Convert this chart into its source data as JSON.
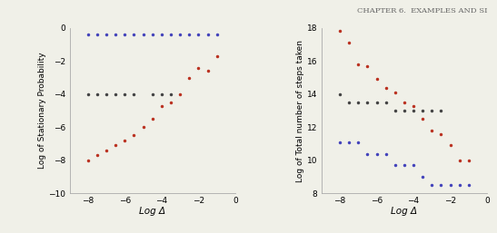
{
  "left_plot": {
    "blue_x": [
      -8,
      -7.5,
      -7,
      -6.5,
      -6,
      -5.5,
      -5,
      -4.5,
      -4,
      -3.5,
      -3,
      -2.5,
      -2,
      -1.5,
      -1
    ],
    "blue_y": [
      -0.4,
      -0.4,
      -0.4,
      -0.4,
      -0.4,
      -0.4,
      -0.4,
      -0.4,
      -0.4,
      -0.4,
      -0.4,
      -0.4,
      -0.4,
      -0.4,
      -0.4
    ],
    "black_x": [
      -8,
      -7.5,
      -7,
      -6.5,
      -6,
      -5.5,
      -4.5,
      -4,
      -3.5
    ],
    "black_y": [
      -4.0,
      -4.0,
      -4.0,
      -4.0,
      -4.0,
      -4.0,
      -4.0,
      -4.0,
      -4.0
    ],
    "red_x": [
      -8,
      -7.5,
      -7,
      -6.5,
      -6,
      -5.5,
      -5,
      -4.5,
      -4,
      -3.5,
      -3,
      -2.5,
      -2,
      -1.5,
      -1
    ],
    "red_y": [
      -8.0,
      -7.7,
      -7.4,
      -7.1,
      -6.8,
      -6.5,
      -6.0,
      -5.5,
      -4.7,
      -4.5,
      -4.0,
      -3.0,
      -2.4,
      -2.6,
      -1.7
    ],
    "xlabel": "Log Δ",
    "ylabel": "Log of Stationary Probability",
    "xlim": [
      -9,
      0
    ],
    "ylim": [
      -10,
      0
    ],
    "xticks": [
      -8,
      -6,
      -4,
      -2,
      0
    ],
    "yticks": [
      0,
      -2,
      -4,
      -6,
      -8,
      -10
    ]
  },
  "right_plot": {
    "blue_x": [
      -8,
      -7.5,
      -7,
      -6.5,
      -6,
      -5.5,
      -5,
      -4.5,
      -4,
      -3.5,
      -3,
      -2.5,
      -2,
      -1.5,
      -1
    ],
    "blue_y": [
      11.1,
      11.1,
      11.1,
      10.4,
      10.4,
      10.4,
      9.7,
      9.7,
      9.7,
      9.0,
      8.5,
      8.5,
      8.5,
      8.5,
      8.5
    ],
    "black_x": [
      -8,
      -7.5,
      -7,
      -6.5,
      -6,
      -5.5,
      -5,
      -4.5,
      -4,
      -3.5,
      -3,
      -2.5
    ],
    "black_y": [
      14.0,
      13.5,
      13.5,
      13.5,
      13.5,
      13.5,
      13.0,
      13.0,
      13.0,
      13.0,
      13.0,
      13.0
    ],
    "red_x": [
      -8,
      -7.5,
      -7,
      -6.5,
      -6,
      -5.5,
      -5,
      -4.5,
      -4,
      -3.5,
      -3,
      -2.5,
      -2,
      -1.5,
      -1
    ],
    "red_y": [
      17.8,
      17.1,
      15.8,
      15.7,
      14.9,
      14.4,
      14.1,
      13.5,
      13.3,
      12.5,
      11.8,
      11.6,
      10.9,
      10.0,
      10.0
    ],
    "xlabel": "Log Δ",
    "ylabel": "Log of Total number of steps taken",
    "xlim": [
      -9,
      0
    ],
    "ylim": [
      8,
      18
    ],
    "xticks": [
      -8,
      -6,
      -4,
      -2,
      0
    ],
    "yticks": [
      8,
      10,
      12,
      14,
      16,
      18
    ]
  },
  "blue_color": "#4444bb",
  "red_color": "#bb3322",
  "black_color": "#444444",
  "bg_color": "#f0f0e8",
  "marker_size": 3,
  "header_text": "CHAPTER 6.  EXAMPLES AND SI",
  "header_fontsize": 6
}
